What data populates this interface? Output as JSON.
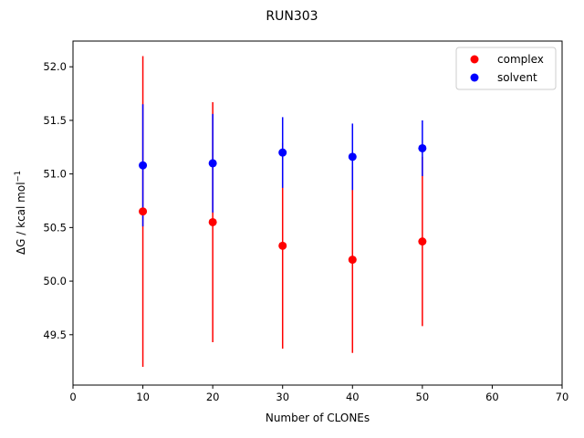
{
  "chart_data": {
    "type": "scatter",
    "title": "RUN303",
    "xlabel": "Number of CLONEs",
    "ylabel_base": "ΔG / kcal mol",
    "ylabel_sup": "−1",
    "xlim": [
      0,
      70
    ],
    "ylim": [
      49.03,
      52.24
    ],
    "xticks": [
      0,
      10,
      20,
      30,
      40,
      50,
      60,
      70
    ],
    "xtick_labels": [
      "0",
      "10",
      "20",
      "30",
      "40",
      "50",
      "60",
      "70"
    ],
    "yticks": [
      49.5,
      50.0,
      50.5,
      51.0,
      51.5,
      52.0
    ],
    "ytick_labels": [
      "49.5",
      "50.0",
      "50.5",
      "51.0",
      "51.5",
      "52.0"
    ],
    "grid": false,
    "legend_position": "top-right",
    "series": [
      {
        "name": "complex",
        "color": "#ff0000",
        "x": [
          10,
          20,
          30,
          40,
          50
        ],
        "y": [
          50.65,
          50.55,
          50.33,
          50.2,
          50.37
        ],
        "err": [
          1.45,
          1.12,
          0.96,
          0.87,
          0.79
        ]
      },
      {
        "name": "solvent",
        "color": "#0000ff",
        "x": [
          10,
          20,
          30,
          40,
          50
        ],
        "y": [
          51.08,
          51.1,
          51.2,
          51.16,
          51.24
        ],
        "err": [
          0.57,
          0.46,
          0.33,
          0.31,
          0.26
        ]
      }
    ]
  }
}
